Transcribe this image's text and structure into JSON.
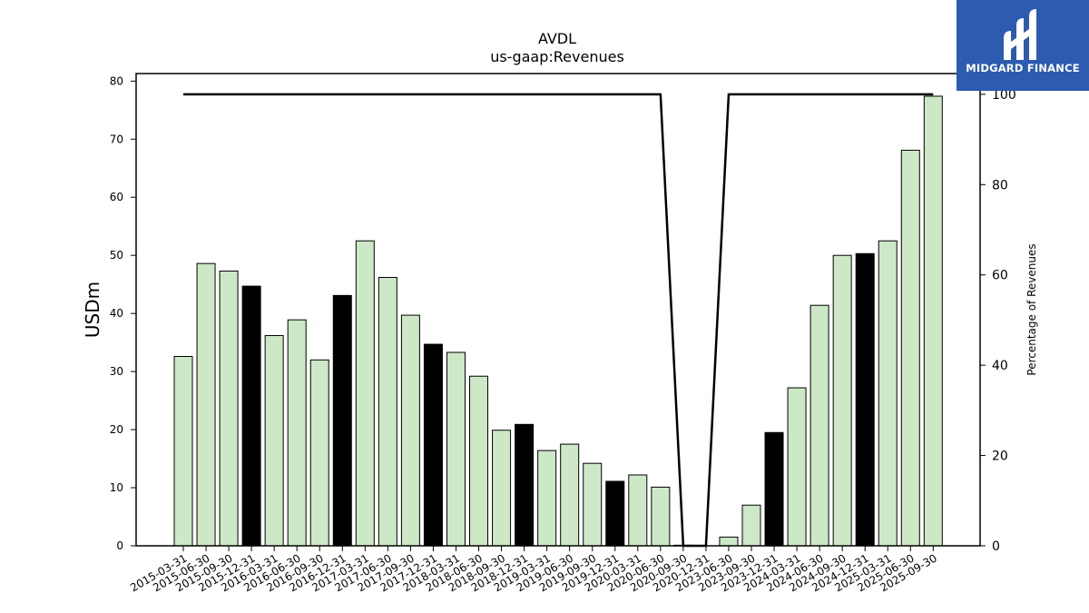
{
  "brand": {
    "name": "MIDGARD FINANCE"
  },
  "chart_data": {
    "type": "bar",
    "title": "AVDL",
    "subtitle": "us-gaap:Revenues",
    "ylabel": "USDm",
    "y2label": "Percentage of Revenues",
    "ylim": [
      0,
      81.3
    ],
    "y2lim": [
      0,
      104.6
    ],
    "yticks": [
      0,
      10,
      20,
      30,
      40,
      50,
      60,
      70,
      80
    ],
    "y2ticks": [
      0,
      20,
      40,
      60,
      80,
      100
    ],
    "categories": [
      "2015-03-31",
      "2015-06-30",
      "2015-09-30",
      "2015-12-31",
      "2016-03-31",
      "2016-06-30",
      "2016-09-30",
      "2016-12-31",
      "2017-03-31",
      "2017-06-30",
      "2017-09-30",
      "2017-12-31",
      "2018-03-31",
      "2018-06-30",
      "2018-09-30",
      "2018-12-31",
      "2019-03-31",
      "2019-06-30",
      "2019-09-30",
      "2019-12-31",
      "2020-03-31",
      "2020-06-30",
      "2020-09-30",
      "2020-12-31",
      "2023-06-30",
      "2023-09-30",
      "2023-12-31",
      "2024-03-31",
      "2024-06-30",
      "2024-09-30",
      "2024-12-31",
      "2025-03-31",
      "2025-06-30",
      "2025-09-30"
    ],
    "series": [
      {
        "type": "bar",
        "values": [
          32.6,
          48.6,
          47.3,
          44.7,
          36.2,
          38.9,
          32.0,
          43.1,
          52.5,
          46.2,
          39.7,
          34.7,
          33.3,
          29.2,
          19.9,
          20.9,
          16.4,
          17.5,
          14.2,
          11.1,
          12.2,
          10.1,
          0.1,
          0.0,
          1.5,
          7.0,
          19.5,
          27.2,
          41.4,
          50.0,
          50.3,
          52.5,
          68.1,
          77.4
        ],
        "highlight": [
          false,
          false,
          false,
          true,
          false,
          false,
          false,
          true,
          false,
          false,
          false,
          true,
          false,
          false,
          false,
          true,
          false,
          false,
          false,
          true,
          false,
          false,
          false,
          true,
          false,
          false,
          true,
          false,
          false,
          false,
          true,
          false,
          false,
          false
        ]
      },
      {
        "type": "line",
        "axis": "right",
        "values": [
          100,
          100,
          100,
          100,
          100,
          100,
          100,
          100,
          100,
          100,
          100,
          100,
          100,
          100,
          100,
          100,
          100,
          100,
          100,
          100,
          100,
          100,
          0,
          0,
          100,
          100,
          100,
          100,
          100,
          100,
          100,
          100,
          100,
          100
        ]
      }
    ],
    "colors": {
      "bar": "#cde8c6",
      "bar_highlight": "#000000",
      "bar_edge": "#000000",
      "line": "#000000"
    },
    "grid": false
  }
}
